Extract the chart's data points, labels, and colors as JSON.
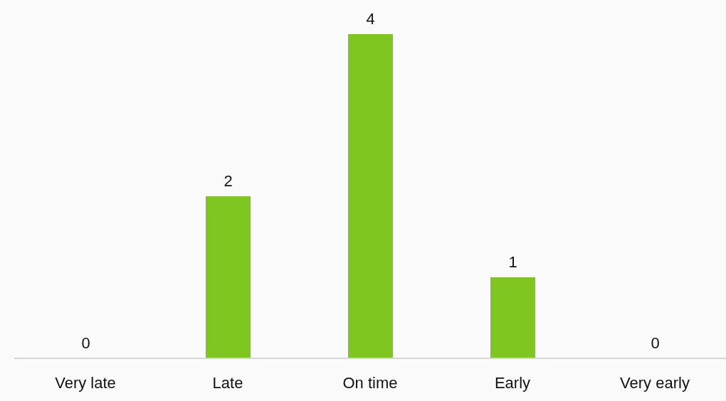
{
  "chart_data": {
    "type": "bar",
    "categories": [
      "Very late",
      "Late",
      "On time",
      "Early",
      "Very early"
    ],
    "values": [
      0,
      2,
      4,
      1,
      0
    ],
    "color": "#80c620",
    "data_labels": true
  }
}
